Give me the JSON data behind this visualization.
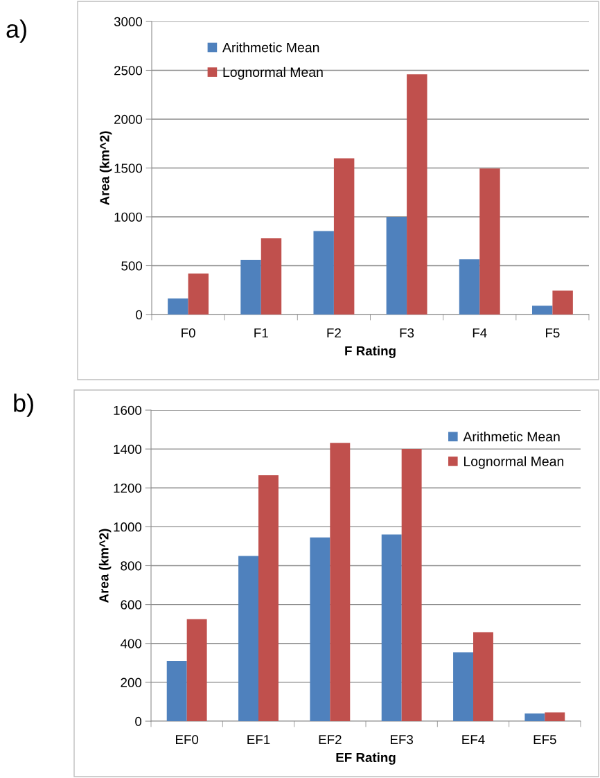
{
  "chart_data": [
    {
      "type": "bar",
      "xlabel": "F Rating",
      "ylabel": "Area (km^2)",
      "annotations": [
        "a)"
      ],
      "categories": [
        "F0",
        "F1",
        "F2",
        "F3",
        "F4",
        "F5"
      ],
      "series": [
        {
          "name": "Arithmetic Mean",
          "color": "#4f81bd",
          "values": [
            165,
            560,
            855,
            1000,
            565,
            90
          ]
        },
        {
          "name": "Lognormal Mean",
          "color": "#c0504d",
          "values": [
            420,
            780,
            1600,
            2460,
            1495,
            245
          ]
        }
      ],
      "ylim": [
        0,
        3000
      ],
      "yticks": [
        0,
        500,
        1000,
        1500,
        2000,
        2500,
        3000
      ],
      "grid": "y",
      "legend": "top left"
    },
    {
      "type": "bar",
      "xlabel": "EF Rating",
      "ylabel": "Area (km^2)",
      "annotations": [
        "b)"
      ],
      "categories": [
        "EF0",
        "EF1",
        "EF2",
        "EF3",
        "EF4",
        "EF5"
      ],
      "series": [
        {
          "name": "Arithmetic Mean",
          "color": "#4f81bd",
          "values": [
            310,
            850,
            945,
            960,
            355,
            40
          ]
        },
        {
          "name": "Lognormal Mean",
          "color": "#c0504d",
          "values": [
            525,
            1265,
            1432,
            1400,
            458,
            45
          ]
        }
      ],
      "ylim": [
        0,
        1600
      ],
      "yticks": [
        0,
        200,
        400,
        600,
        800,
        1000,
        1200,
        1400,
        1600
      ],
      "grid": "y",
      "legend": "top right"
    }
  ]
}
